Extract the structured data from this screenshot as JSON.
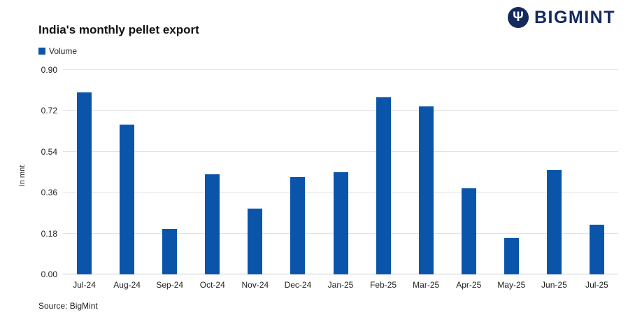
{
  "logo": {
    "text": "BIGMINT",
    "icon": "trident-icon",
    "color": "#14295e",
    "icon_glyph": "Ψ"
  },
  "chart_data": {
    "type": "bar",
    "title": "India's monthly pellet export",
    "legend": [
      {
        "label": "Volume",
        "color": "#0a55a9"
      }
    ],
    "legend_position": "top-left",
    "categories": [
      "Jul-24",
      "Aug-24",
      "Sep-24",
      "Oct-24",
      "Nov-24",
      "Dec-24",
      "Jan-25",
      "Feb-25",
      "Mar-25",
      "Apr-25",
      "May-25",
      "Jun-25",
      "Jul-25"
    ],
    "values": [
      0.8,
      0.66,
      0.2,
      0.44,
      0.29,
      0.43,
      0.45,
      0.78,
      0.74,
      0.38,
      0.16,
      0.46,
      0.22
    ],
    "xlabel": "",
    "ylabel": "In mnt",
    "ylim": [
      0,
      0.9
    ],
    "yticks": [
      0,
      0.18,
      0.36,
      0.54,
      0.72,
      0.9
    ],
    "ytick_labels": [
      "0.00",
      "0.18",
      "0.36",
      "0.54",
      "0.72",
      "0.90"
    ],
    "grid": true,
    "bar_color": "#0a55a9"
  },
  "source": {
    "label": "Source: BigMint"
  }
}
